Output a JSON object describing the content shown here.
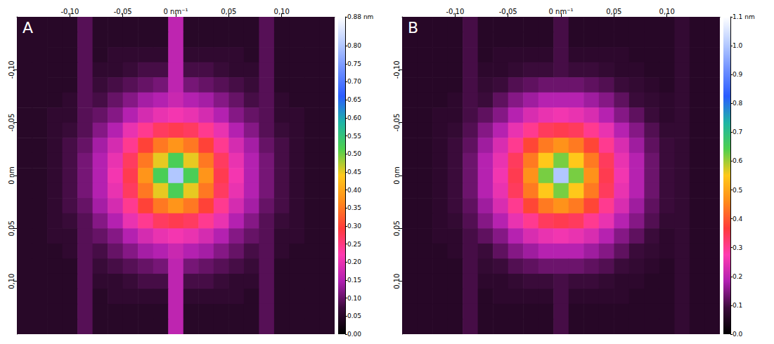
{
  "chart_data": [
    {
      "type": "heatmap",
      "title": "A",
      "xlim": [
        -0.15,
        0.15
      ],
      "ylim": [
        -0.15,
        0.15
      ],
      "xticks": [
        {
          "value": -0.1,
          "label": "-0,10"
        },
        {
          "value": -0.05,
          "label": "-0,05"
        },
        {
          "value": 0,
          "label": "0 nm⁻¹"
        },
        {
          "value": 0.05,
          "label": "0,05"
        },
        {
          "value": 0.1,
          "label": "0,10"
        }
      ],
      "yticks": [
        {
          "value": -0.1,
          "label": "-0,10"
        },
        {
          "value": -0.05,
          "label": "-0,05"
        },
        {
          "value": 0,
          "label": "0 nm"
        },
        {
          "value": 0.05,
          "label": "0,05"
        },
        {
          "value": 0.1,
          "label": "0,10"
        }
      ],
      "colorbar": {
        "range": [
          0,
          0.88
        ],
        "ticks": [
          {
            "value": 0,
            "label": "0.00"
          },
          {
            "value": 0.05,
            "label": "0.05"
          },
          {
            "value": 0.1,
            "label": "0.10"
          },
          {
            "value": 0.15,
            "label": "0.15"
          },
          {
            "value": 0.2,
            "label": "0.20"
          },
          {
            "value": 0.25,
            "label": "0.25"
          },
          {
            "value": 0.3,
            "label": "0.30"
          },
          {
            "value": 0.35,
            "label": "0.35"
          },
          {
            "value": 0.4,
            "label": "0.40"
          },
          {
            "value": 0.45,
            "label": "0.45"
          },
          {
            "value": 0.5,
            "label": "0.50"
          },
          {
            "value": 0.55,
            "label": "0.55"
          },
          {
            "value": 0.6,
            "label": "0.60"
          },
          {
            "value": 0.65,
            "label": "0.65"
          },
          {
            "value": 0.7,
            "label": "0.70"
          },
          {
            "value": 0.75,
            "label": "0.75"
          },
          {
            "value": 0.8,
            "label": "0.80"
          },
          {
            "value": 0.88,
            "label": "0.88 nm"
          }
        ]
      },
      "cells": [
        [
          0.05,
          0.05,
          0.05,
          0.05,
          0.09,
          0.05,
          0.05,
          0.05,
          0.05,
          0.05,
          0.16,
          0.05,
          0.05,
          0.05,
          0.05,
          0.05,
          0.09,
          0.05,
          0.05,
          0.05,
          0.05
        ],
        [
          0.05,
          0.05,
          0.05,
          0.05,
          0.09,
          0.05,
          0.05,
          0.05,
          0.05,
          0.05,
          0.16,
          0.05,
          0.05,
          0.05,
          0.05,
          0.05,
          0.09,
          0.05,
          0.05,
          0.05,
          0.05
        ],
        [
          0.05,
          0.05,
          0.05,
          0.05,
          0.09,
          0.05,
          0.06,
          0.06,
          0.06,
          0.06,
          0.16,
          0.06,
          0.06,
          0.06,
          0.06,
          0.05,
          0.09,
          0.05,
          0.05,
          0.05,
          0.05
        ],
        [
          0.05,
          0.05,
          0.05,
          0.05,
          0.09,
          0.06,
          0.06,
          0.07,
          0.08,
          0.08,
          0.16,
          0.08,
          0.08,
          0.07,
          0.06,
          0.06,
          0.09,
          0.05,
          0.05,
          0.05,
          0.05
        ],
        [
          0.05,
          0.05,
          0.05,
          0.05,
          0.09,
          0.07,
          0.08,
          0.09,
          0.1,
          0.11,
          0.16,
          0.11,
          0.1,
          0.09,
          0.08,
          0.07,
          0.09,
          0.05,
          0.05,
          0.05,
          0.05
        ],
        [
          0.05,
          0.05,
          0.05,
          0.06,
          0.09,
          0.08,
          0.1,
          0.12,
          0.14,
          0.15,
          0.17,
          0.15,
          0.14,
          0.12,
          0.1,
          0.08,
          0.09,
          0.06,
          0.05,
          0.05,
          0.05
        ],
        [
          0.05,
          0.05,
          0.06,
          0.06,
          0.09,
          0.1,
          0.12,
          0.15,
          0.18,
          0.2,
          0.21,
          0.2,
          0.18,
          0.15,
          0.12,
          0.1,
          0.09,
          0.06,
          0.06,
          0.05,
          0.05
        ],
        [
          0.05,
          0.05,
          0.06,
          0.07,
          0.09,
          0.12,
          0.15,
          0.2,
          0.24,
          0.27,
          0.28,
          0.27,
          0.24,
          0.2,
          0.15,
          0.12,
          0.09,
          0.07,
          0.06,
          0.05,
          0.05
        ],
        [
          0.05,
          0.05,
          0.06,
          0.08,
          0.1,
          0.14,
          0.18,
          0.24,
          0.3,
          0.35,
          0.38,
          0.35,
          0.3,
          0.24,
          0.18,
          0.14,
          0.1,
          0.08,
          0.06,
          0.05,
          0.05
        ],
        [
          0.05,
          0.05,
          0.06,
          0.08,
          0.11,
          0.15,
          0.2,
          0.27,
          0.35,
          0.45,
          0.52,
          0.45,
          0.35,
          0.27,
          0.2,
          0.15,
          0.11,
          0.08,
          0.06,
          0.05,
          0.05
        ],
        [
          0.05,
          0.05,
          0.06,
          0.08,
          0.11,
          0.15,
          0.21,
          0.28,
          0.38,
          0.52,
          0.8,
          0.52,
          0.38,
          0.28,
          0.21,
          0.15,
          0.11,
          0.08,
          0.06,
          0.05,
          0.05
        ],
        [
          0.05,
          0.05,
          0.06,
          0.08,
          0.11,
          0.15,
          0.2,
          0.27,
          0.35,
          0.45,
          0.52,
          0.45,
          0.35,
          0.27,
          0.2,
          0.15,
          0.11,
          0.08,
          0.06,
          0.05,
          0.05
        ],
        [
          0.05,
          0.05,
          0.06,
          0.08,
          0.1,
          0.14,
          0.18,
          0.24,
          0.3,
          0.35,
          0.38,
          0.35,
          0.3,
          0.24,
          0.18,
          0.14,
          0.1,
          0.08,
          0.06,
          0.05,
          0.05
        ],
        [
          0.05,
          0.05,
          0.06,
          0.07,
          0.09,
          0.12,
          0.15,
          0.2,
          0.24,
          0.27,
          0.28,
          0.27,
          0.24,
          0.2,
          0.15,
          0.12,
          0.09,
          0.07,
          0.06,
          0.05,
          0.05
        ],
        [
          0.05,
          0.05,
          0.06,
          0.06,
          0.09,
          0.1,
          0.12,
          0.15,
          0.18,
          0.2,
          0.21,
          0.2,
          0.18,
          0.15,
          0.12,
          0.1,
          0.09,
          0.06,
          0.06,
          0.05,
          0.05
        ],
        [
          0.05,
          0.05,
          0.05,
          0.06,
          0.09,
          0.08,
          0.1,
          0.12,
          0.14,
          0.15,
          0.17,
          0.15,
          0.14,
          0.12,
          0.1,
          0.08,
          0.09,
          0.06,
          0.05,
          0.05,
          0.05
        ],
        [
          0.05,
          0.05,
          0.05,
          0.05,
          0.09,
          0.07,
          0.08,
          0.09,
          0.1,
          0.11,
          0.16,
          0.11,
          0.1,
          0.09,
          0.08,
          0.07,
          0.09,
          0.05,
          0.05,
          0.05,
          0.05
        ],
        [
          0.05,
          0.05,
          0.05,
          0.05,
          0.09,
          0.06,
          0.06,
          0.07,
          0.08,
          0.08,
          0.16,
          0.08,
          0.08,
          0.07,
          0.06,
          0.06,
          0.09,
          0.05,
          0.05,
          0.05,
          0.05
        ],
        [
          0.05,
          0.05,
          0.05,
          0.05,
          0.09,
          0.05,
          0.06,
          0.06,
          0.06,
          0.06,
          0.16,
          0.06,
          0.06,
          0.06,
          0.06,
          0.05,
          0.09,
          0.05,
          0.05,
          0.05,
          0.05
        ],
        [
          0.05,
          0.05,
          0.05,
          0.05,
          0.09,
          0.05,
          0.05,
          0.05,
          0.05,
          0.05,
          0.16,
          0.05,
          0.05,
          0.05,
          0.05,
          0.05,
          0.09,
          0.05,
          0.05,
          0.05,
          0.05
        ],
        [
          0.05,
          0.05,
          0.05,
          0.05,
          0.09,
          0.05,
          0.05,
          0.05,
          0.05,
          0.05,
          0.16,
          0.05,
          0.05,
          0.05,
          0.05,
          0.05,
          0.09,
          0.05,
          0.05,
          0.05,
          0.05
        ]
      ]
    },
    {
      "type": "heatmap",
      "title": "B",
      "xlim": [
        -0.15,
        0.15
      ],
      "ylim": [
        -0.15,
        0.15
      ],
      "xticks": [
        {
          "value": -0.1,
          "label": "-0,10"
        },
        {
          "value": -0.05,
          "label": "-0,05"
        },
        {
          "value": 0,
          "label": "0 nm⁻¹"
        },
        {
          "value": 0.05,
          "label": "0,05"
        },
        {
          "value": 0.1,
          "label": "0,10"
        }
      ],
      "yticks": [
        {
          "value": -0.1,
          "label": "-0,10"
        },
        {
          "value": -0.05,
          "label": "-0,05"
        },
        {
          "value": 0,
          "label": "0 nm"
        },
        {
          "value": 0.05,
          "label": "0,05"
        },
        {
          "value": 0.1,
          "label": "0,10"
        }
      ],
      "colorbar": {
        "range": [
          0,
          1.1
        ],
        "ticks": [
          {
            "value": 0,
            "label": "0.0"
          },
          {
            "value": 0.1,
            "label": "0.1"
          },
          {
            "value": 0.2,
            "label": "0.2"
          },
          {
            "value": 0.3,
            "label": "0.3"
          },
          {
            "value": 0.4,
            "label": "0.4"
          },
          {
            "value": 0.5,
            "label": "0.5"
          },
          {
            "value": 0.6,
            "label": "0.6"
          },
          {
            "value": 0.7,
            "label": "0.7"
          },
          {
            "value": 0.8,
            "label": "0.8"
          },
          {
            "value": 0.9,
            "label": "0.9"
          },
          {
            "value": 1,
            "label": "1.0"
          },
          {
            "value": 1.1,
            "label": "1.1 nm"
          }
        ]
      },
      "cells": [
        [
          0.06,
          0.06,
          0.06,
          0.06,
          0.1,
          0.06,
          0.06,
          0.06,
          0.06,
          0.06,
          0.1,
          0.06,
          0.06,
          0.06,
          0.06,
          0.06,
          0.06,
          0.06,
          0.08,
          0.06,
          0.06
        ],
        [
          0.06,
          0.06,
          0.06,
          0.06,
          0.1,
          0.06,
          0.06,
          0.06,
          0.06,
          0.06,
          0.1,
          0.06,
          0.06,
          0.06,
          0.06,
          0.06,
          0.06,
          0.06,
          0.08,
          0.06,
          0.06
        ],
        [
          0.06,
          0.06,
          0.06,
          0.06,
          0.1,
          0.06,
          0.07,
          0.07,
          0.07,
          0.07,
          0.1,
          0.07,
          0.07,
          0.07,
          0.07,
          0.06,
          0.06,
          0.06,
          0.08,
          0.06,
          0.06
        ],
        [
          0.06,
          0.06,
          0.06,
          0.06,
          0.1,
          0.07,
          0.07,
          0.08,
          0.09,
          0.09,
          0.1,
          0.09,
          0.09,
          0.08,
          0.07,
          0.07,
          0.06,
          0.06,
          0.08,
          0.06,
          0.06
        ],
        [
          0.06,
          0.06,
          0.06,
          0.06,
          0.1,
          0.08,
          0.09,
          0.11,
          0.12,
          0.13,
          0.13,
          0.13,
          0.12,
          0.11,
          0.09,
          0.08,
          0.07,
          0.06,
          0.08,
          0.06,
          0.06
        ],
        [
          0.06,
          0.06,
          0.06,
          0.07,
          0.1,
          0.09,
          0.12,
          0.15,
          0.17,
          0.19,
          0.19,
          0.19,
          0.17,
          0.15,
          0.12,
          0.09,
          0.08,
          0.07,
          0.08,
          0.06,
          0.06
        ],
        [
          0.06,
          0.06,
          0.07,
          0.07,
          0.1,
          0.12,
          0.15,
          0.19,
          0.23,
          0.25,
          0.26,
          0.25,
          0.23,
          0.19,
          0.15,
          0.12,
          0.09,
          0.07,
          0.08,
          0.06,
          0.06
        ],
        [
          0.06,
          0.06,
          0.07,
          0.08,
          0.11,
          0.15,
          0.19,
          0.25,
          0.3,
          0.34,
          0.35,
          0.34,
          0.3,
          0.25,
          0.19,
          0.15,
          0.11,
          0.08,
          0.08,
          0.06,
          0.06
        ],
        [
          0.06,
          0.06,
          0.07,
          0.09,
          0.12,
          0.17,
          0.23,
          0.3,
          0.38,
          0.44,
          0.47,
          0.44,
          0.38,
          0.3,
          0.23,
          0.17,
          0.12,
          0.09,
          0.08,
          0.06,
          0.06
        ],
        [
          0.06,
          0.06,
          0.07,
          0.09,
          0.13,
          0.19,
          0.25,
          0.34,
          0.44,
          0.55,
          0.62,
          0.55,
          0.44,
          0.34,
          0.25,
          0.19,
          0.13,
          0.09,
          0.08,
          0.06,
          0.06
        ],
        [
          0.06,
          0.06,
          0.07,
          0.09,
          0.13,
          0.19,
          0.26,
          0.35,
          0.47,
          0.62,
          1.0,
          0.62,
          0.47,
          0.35,
          0.26,
          0.19,
          0.13,
          0.09,
          0.08,
          0.06,
          0.06
        ],
        [
          0.06,
          0.06,
          0.07,
          0.09,
          0.13,
          0.19,
          0.25,
          0.34,
          0.44,
          0.55,
          0.62,
          0.55,
          0.44,
          0.34,
          0.25,
          0.19,
          0.13,
          0.09,
          0.08,
          0.06,
          0.06
        ],
        [
          0.06,
          0.06,
          0.07,
          0.09,
          0.12,
          0.17,
          0.23,
          0.3,
          0.38,
          0.44,
          0.47,
          0.44,
          0.38,
          0.3,
          0.23,
          0.17,
          0.12,
          0.09,
          0.08,
          0.06,
          0.06
        ],
        [
          0.06,
          0.06,
          0.07,
          0.08,
          0.11,
          0.15,
          0.19,
          0.25,
          0.3,
          0.34,
          0.35,
          0.34,
          0.3,
          0.25,
          0.19,
          0.15,
          0.11,
          0.08,
          0.08,
          0.06,
          0.06
        ],
        [
          0.06,
          0.06,
          0.07,
          0.07,
          0.1,
          0.12,
          0.15,
          0.19,
          0.23,
          0.25,
          0.26,
          0.25,
          0.23,
          0.19,
          0.15,
          0.12,
          0.09,
          0.07,
          0.08,
          0.06,
          0.06
        ],
        [
          0.06,
          0.06,
          0.06,
          0.07,
          0.1,
          0.09,
          0.12,
          0.15,
          0.17,
          0.19,
          0.19,
          0.19,
          0.17,
          0.15,
          0.12,
          0.09,
          0.08,
          0.07,
          0.08,
          0.06,
          0.06
        ],
        [
          0.06,
          0.06,
          0.06,
          0.06,
          0.1,
          0.08,
          0.09,
          0.11,
          0.12,
          0.13,
          0.13,
          0.13,
          0.12,
          0.11,
          0.09,
          0.08,
          0.07,
          0.06,
          0.08,
          0.06,
          0.06
        ],
        [
          0.06,
          0.06,
          0.06,
          0.06,
          0.1,
          0.07,
          0.07,
          0.08,
          0.09,
          0.09,
          0.1,
          0.09,
          0.09,
          0.08,
          0.07,
          0.07,
          0.06,
          0.06,
          0.08,
          0.06,
          0.06
        ],
        [
          0.06,
          0.06,
          0.06,
          0.06,
          0.1,
          0.06,
          0.07,
          0.07,
          0.07,
          0.07,
          0.1,
          0.07,
          0.07,
          0.07,
          0.07,
          0.06,
          0.06,
          0.06,
          0.08,
          0.06,
          0.06
        ],
        [
          0.06,
          0.06,
          0.06,
          0.06,
          0.1,
          0.06,
          0.06,
          0.06,
          0.06,
          0.06,
          0.1,
          0.06,
          0.06,
          0.06,
          0.06,
          0.06,
          0.06,
          0.06,
          0.08,
          0.06,
          0.06
        ],
        [
          0.06,
          0.06,
          0.06,
          0.06,
          0.1,
          0.06,
          0.06,
          0.06,
          0.06,
          0.06,
          0.1,
          0.06,
          0.06,
          0.06,
          0.06,
          0.06,
          0.06,
          0.06,
          0.08,
          0.06,
          0.06
        ]
      ]
    }
  ]
}
